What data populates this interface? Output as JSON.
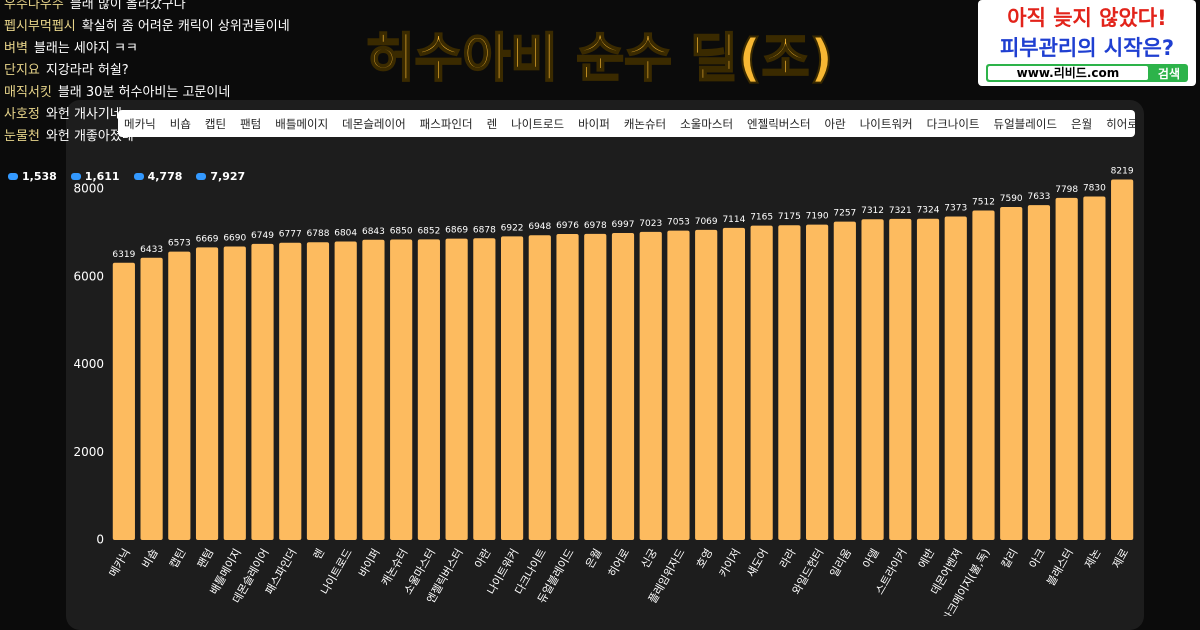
{
  "chat": [
    {
      "user": "우주다우주",
      "message": "블래 많이 올라갔구나"
    },
    {
      "user": "펩시부먹펩시",
      "message": "확실히 좀 어려운 캐릭이 상위권들이네"
    },
    {
      "user": "벼벽",
      "message": "블래는 세야지 ㅋㅋ"
    },
    {
      "user": "단지요",
      "message": "지강라라 허쉴?"
    },
    {
      "user": "매직서킷",
      "message": "블래 30분 허수아비는 고문이네"
    },
    {
      "user": "사호정",
      "message": "와헌 개사기네"
    },
    {
      "user": "눈물천",
      "message": "와헌 개좋아졌네"
    }
  ],
  "stats": [
    "1,538",
    "1,611",
    "4,778",
    "7,927"
  ],
  "ad": {
    "line1": "아직 늦지 않았다!",
    "line2": "피부관리의 시작은?",
    "url": "www.리비드.com",
    "button": "검색"
  },
  "tabs": [
    "메카닉",
    "비숍",
    "캡틴",
    "팬텀",
    "배틀메이지",
    "데몬슬레이어",
    "패스파인더",
    "렌",
    "나이트로드",
    "바이퍼",
    "캐논슈터",
    "소울마스터",
    "엔젤릭버스터",
    "아란",
    "나이트워커",
    "다크나이트",
    "듀얼블레이드",
    "은월",
    "히어로"
  ],
  "chart_data": {
    "type": "bar",
    "title": "허수아비 순수 딜(조)",
    "categories": [
      "메카닉",
      "비숍",
      "캡틴",
      "팬텀",
      "배틀메이지",
      "데몬슬레이어",
      "패스파인더",
      "렌",
      "나이트로드",
      "바이퍼",
      "캐논슈터",
      "소울마스터",
      "엔젤릭버스터",
      "아란",
      "나이트워커",
      "다크나이트",
      "듀얼블레이드",
      "은월",
      "히어로",
      "신궁",
      "플레임위자드",
      "호영",
      "카이저",
      "섀도어",
      "라라",
      "와일드헌터",
      "일리움",
      "아델",
      "스트라이커",
      "에반",
      "데몬어벤져",
      "아크메이지(불,독)",
      "칼리",
      "아크",
      "블래스터",
      "제논",
      "제로"
    ],
    "values": [
      6319,
      6433,
      6573,
      6669,
      6690,
      6749,
      6777,
      6788,
      6804,
      6843,
      6850,
      6852,
      6869,
      6878,
      6922,
      6948,
      6976,
      6978,
      6997,
      7023,
      7053,
      7069,
      7114,
      7165,
      7175,
      7190,
      7257,
      7312,
      7321,
      7324,
      7373,
      7512,
      7590,
      7633,
      7798,
      7830,
      8219
    ],
    "color": "#fdbb5f",
    "ylim": [
      0,
      8400
    ],
    "yticks": [
      0,
      2000,
      4000,
      6000,
      8000
    ],
    "grid": false
  }
}
